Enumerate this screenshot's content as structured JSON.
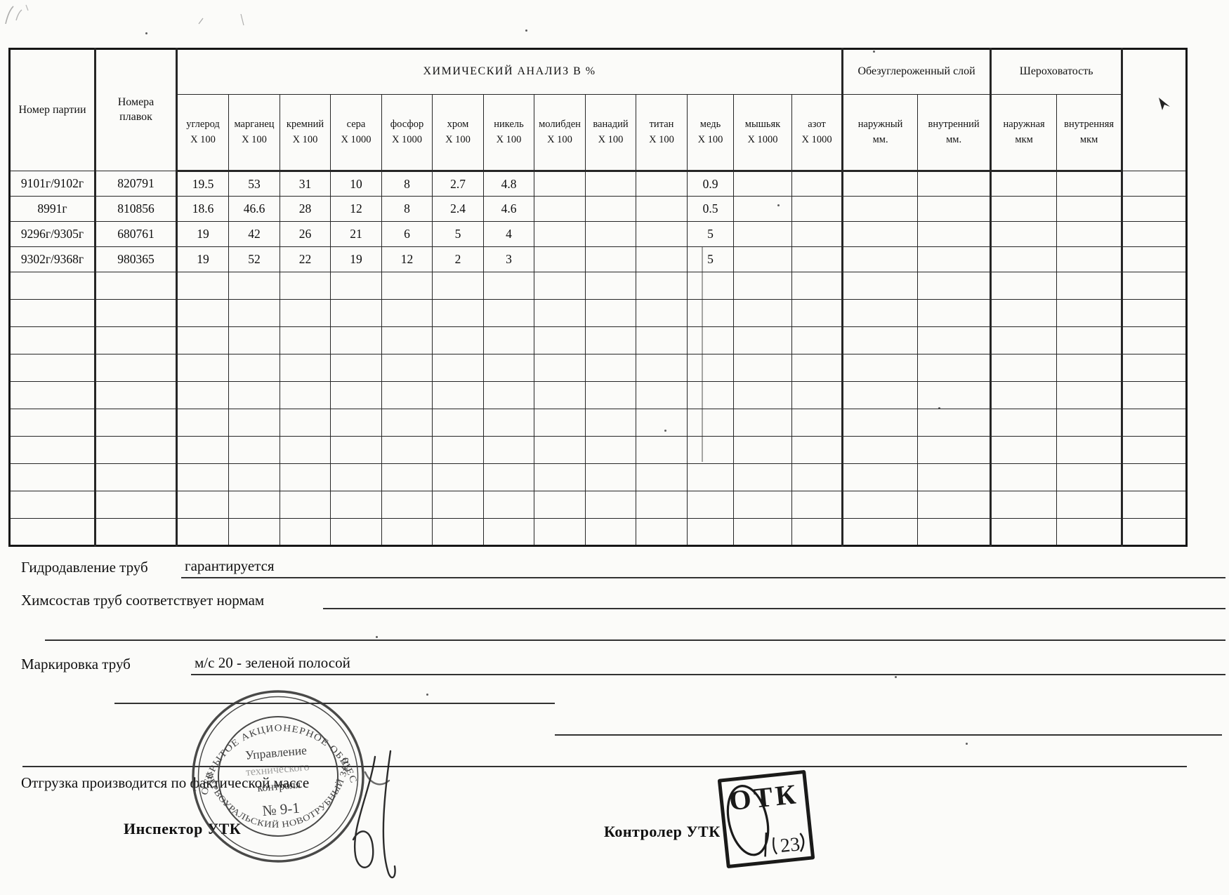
{
  "table": {
    "headers": {
      "batch": "Номер партии",
      "heats": "Номера плавок",
      "chemical": "ХИМИЧЕСКИЙ АНАЛИЗ В %",
      "decarb": "Обезуглероженный слой",
      "roughness": "Шероховатость"
    },
    "columns": [
      {
        "label": "углерод",
        "factor": "X 100"
      },
      {
        "label": "марганец",
        "factor": "X 100"
      },
      {
        "label": "кремний",
        "factor": "X 100"
      },
      {
        "label": "сера",
        "factor": "X 1000"
      },
      {
        "label": "фосфор",
        "factor": "X 1000"
      },
      {
        "label": "хром",
        "factor": "X 100"
      },
      {
        "label": "никель",
        "factor": "X 100"
      },
      {
        "label": "молибден",
        "factor": "X 100"
      },
      {
        "label": "ванадий",
        "factor": "X 100"
      },
      {
        "label": "титан",
        "factor": "X 100"
      },
      {
        "label": "медь",
        "factor": "X 100"
      },
      {
        "label": "мышьяк",
        "factor": "X 1000"
      },
      {
        "label": "азот",
        "factor": "X 1000"
      },
      {
        "label": "наружный",
        "factor": "мм."
      },
      {
        "label": "внутренний",
        "factor": "мм."
      },
      {
        "label": "наружная",
        "factor": "мкм"
      },
      {
        "label": "внутренняя",
        "factor": "мкм"
      }
    ],
    "rows": [
      {
        "batch": "9101г/9102г",
        "heat": "820791",
        "values": [
          "19.5",
          "53",
          "31",
          "10",
          "8",
          "2.7",
          "4.8",
          "",
          "",
          "",
          "0.9",
          "",
          "",
          "",
          "",
          "",
          ""
        ]
      },
      {
        "batch": "8991г",
        "heat": "810856",
        "values": [
          "18.6",
          "46.6",
          "28",
          "12",
          "8",
          "2.4",
          "4.6",
          "",
          "",
          "",
          "0.5",
          "",
          "",
          "",
          "",
          "",
          ""
        ]
      },
      {
        "batch": "9296г/9305г",
        "heat": "680761",
        "values": [
          "19",
          "42",
          "26",
          "21",
          "6",
          "5",
          "4",
          "",
          "",
          "",
          "5",
          "",
          "",
          "",
          "",
          "",
          ""
        ]
      },
      {
        "batch": "9302г/9368г",
        "heat": "980365",
        "values": [
          "19",
          "52",
          "22",
          "19",
          "12",
          "2",
          "3",
          "",
          "",
          "",
          "5",
          "",
          "",
          "",
          "",
          "",
          ""
        ]
      }
    ],
    "empty_row_count": 10
  },
  "footer": {
    "hydro_label": "Гидродавление труб",
    "hydro_value": "гарантируется",
    "chem_label": "Химсостав труб соответствует нормам",
    "marking_label": "Маркировка труб",
    "marking_value": "м/с 20 - зеленой полосой",
    "shipping_label": "Отгрузка производится по фактической массе",
    "inspector_label": "Инспектор УТК",
    "controller_label": "Контролер УТК"
  },
  "stamps": {
    "round": {
      "top_arc": "ОТКРЫТОЕ АКЦИОНЕРНОЕ ОБЩЕСТВО",
      "bottom_arc": "ПЕРВОУРАЛЬСКИЙ НОВОТРУБНЫЙ ЗАВОД",
      "star": "*",
      "line1": "Управление",
      "line2": "технического",
      "line3": "контроля",
      "line4": "№ 9-1"
    },
    "otk": {
      "text": "ОТК",
      "number": "23"
    }
  }
}
